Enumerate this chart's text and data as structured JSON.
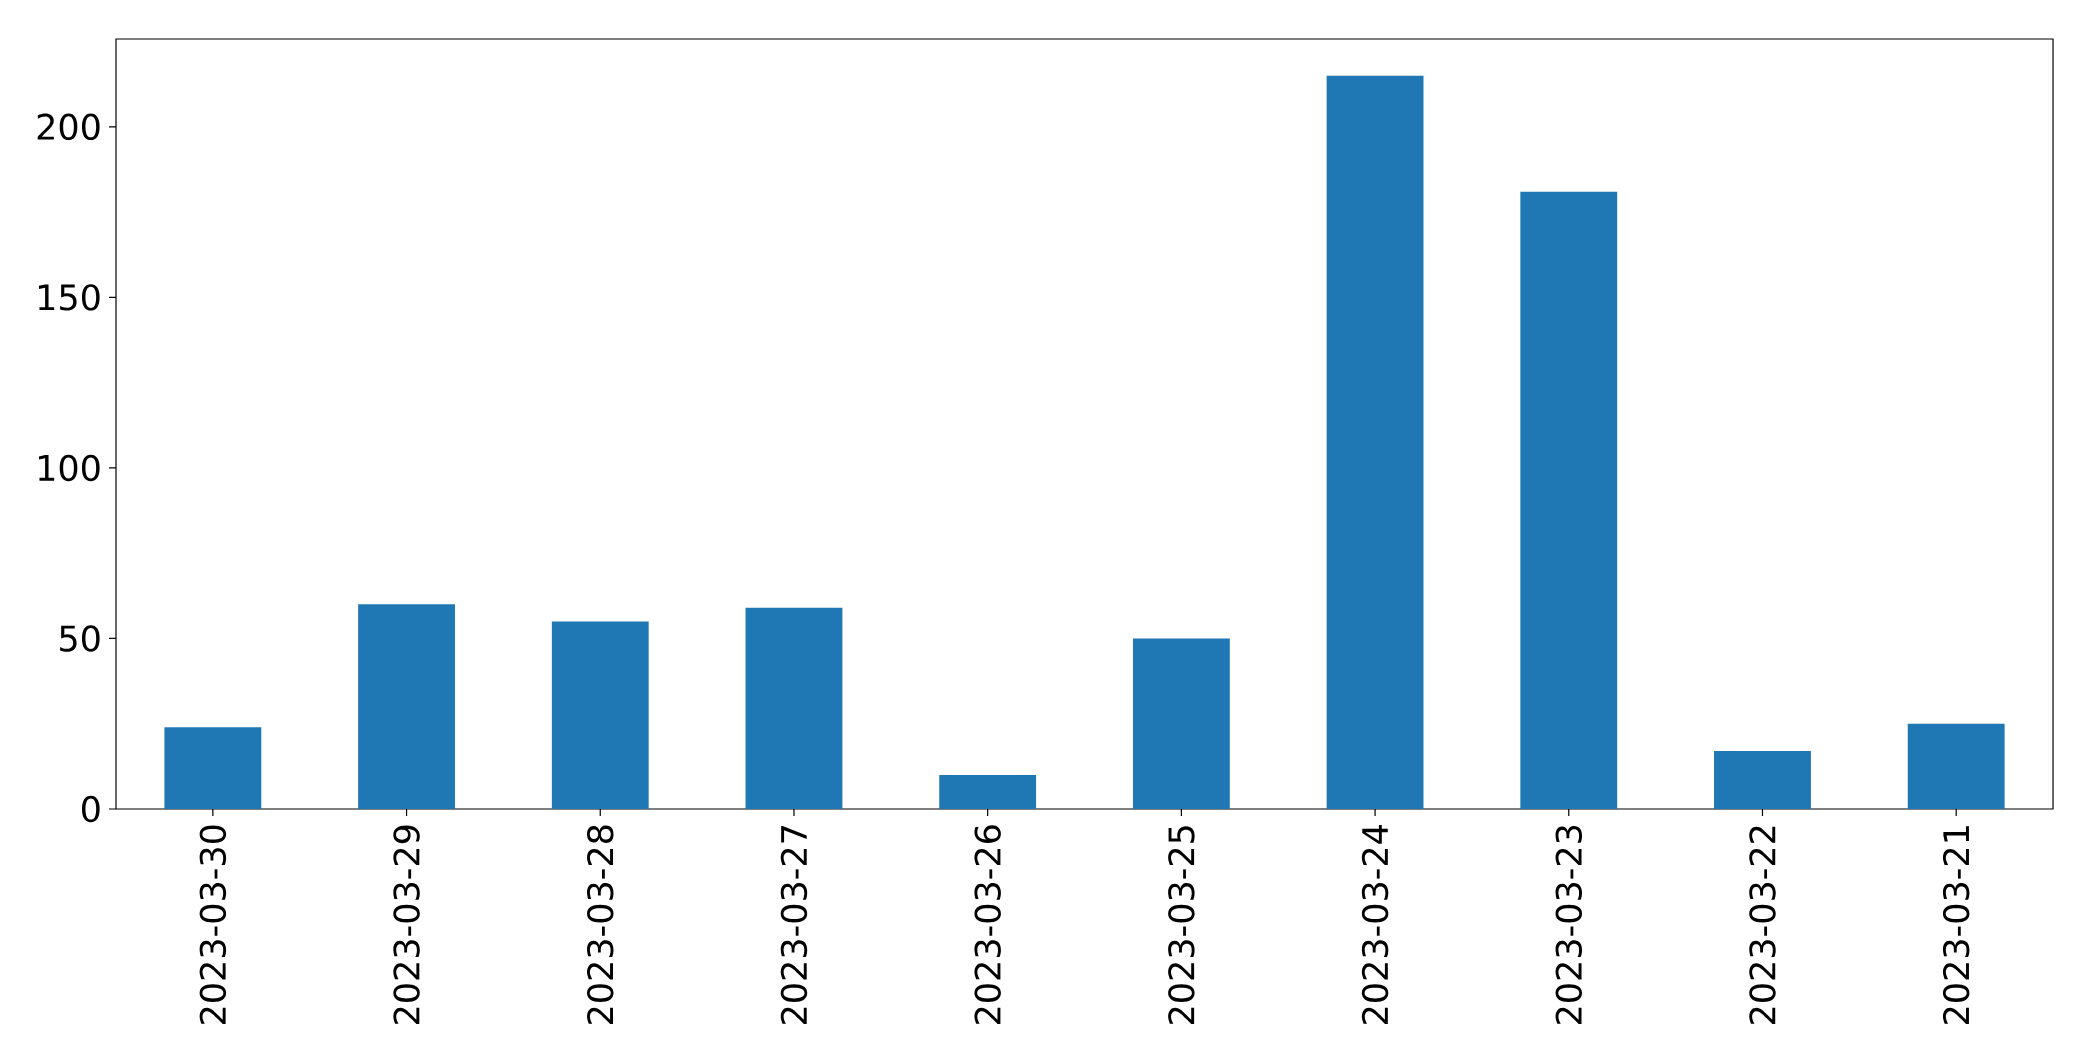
{
  "chart_data": {
    "type": "bar",
    "categories": [
      "2023-03-30",
      "2023-03-29",
      "2023-03-28",
      "2023-03-27",
      "2023-03-26",
      "2023-03-25",
      "2023-03-24",
      "2023-03-23",
      "2023-03-22",
      "2023-03-21"
    ],
    "values": [
      24,
      60,
      55,
      59,
      10,
      50,
      215,
      181,
      17,
      25
    ],
    "color": "#1f77b4",
    "ylim": [
      0,
      225.75
    ],
    "yticks": [
      0,
      50,
      100,
      150,
      200
    ]
  }
}
